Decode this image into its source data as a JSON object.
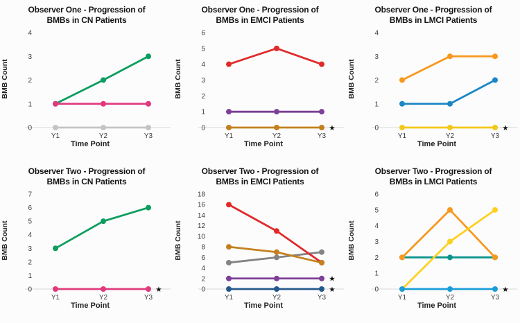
{
  "style": {
    "background": "#fcfcfc",
    "gridline_color": "#dedede",
    "tick_color": "#3d3d3d",
    "title_color": "#151515",
    "star_symbol": "★"
  },
  "chart_data": [
    {
      "type": "line",
      "title_line1": "Observer One - Progression of",
      "title_line2": "BMBs in CN Patients",
      "xlabel": "Time Point",
      "ylabel": "BMB Count",
      "categories": [
        "Y1",
        "Y2",
        "Y3"
      ],
      "ylim": [
        0,
        4
      ],
      "yticks": [
        0,
        1,
        2,
        3,
        4
      ],
      "grid": "zero-baseline-only",
      "legend": "none",
      "series": [
        {
          "name": "gray-flat",
          "color": "#c4c4c4",
          "values": [
            0,
            0,
            0
          ]
        },
        {
          "name": "green-rising",
          "color": "#0d9d60",
          "values": [
            1,
            2,
            3
          ]
        },
        {
          "name": "pink-flat",
          "color": "#e03a7c",
          "values": [
            1,
            1,
            1
          ]
        }
      ],
      "stars": []
    },
    {
      "type": "line",
      "title_line1": "Observer One - Progression of",
      "title_line2": "BMBs in EMCI Patients",
      "xlabel": "Time Point",
      "ylabel": "BMB Count",
      "categories": [
        "Y1",
        "Y2",
        "Y3"
      ],
      "ylim": [
        0,
        6
      ],
      "yticks": [
        0,
        1,
        2,
        3,
        4,
        5,
        6
      ],
      "grid": "zero-baseline-only",
      "legend": "none",
      "series": [
        {
          "name": "brown-flat",
          "color": "#c3801f",
          "values": [
            0,
            0,
            0
          ]
        },
        {
          "name": "purple-flat",
          "color": "#7d3f97",
          "values": [
            1,
            1,
            1
          ]
        },
        {
          "name": "red-peak",
          "color": "#e02a2a",
          "values": [
            4,
            5,
            4
          ]
        }
      ],
      "stars": [
        0
      ]
    },
    {
      "type": "line",
      "title_line1": "Observer One - Progression of",
      "title_line2": "BMBs in LMCI Patients",
      "xlabel": "Time Point",
      "ylabel": "BMB Count",
      "categories": [
        "Y1",
        "Y2",
        "Y3"
      ],
      "ylim": [
        0,
        4
      ],
      "yticks": [
        0,
        1,
        2,
        3,
        4
      ],
      "grid": "zero-baseline-only",
      "legend": "none",
      "series": [
        {
          "name": "yellow-flat",
          "color": "#f4c81a",
          "values": [
            0,
            0,
            0
          ]
        },
        {
          "name": "blue-rising",
          "color": "#1b86c6",
          "values": [
            1,
            1,
            2
          ]
        },
        {
          "name": "orange-rising",
          "color": "#f8981d",
          "values": [
            2,
            3,
            3
          ]
        }
      ],
      "stars": [
        0
      ]
    },
    {
      "type": "line",
      "title_line1": "Observer Two - Progression of",
      "title_line2": "BMBs in CN Patients",
      "xlabel": "Time Point",
      "ylabel": "BMB Count",
      "categories": [
        "Y1",
        "Y2",
        "Y3"
      ],
      "ylim": [
        0,
        7
      ],
      "yticks": [
        0,
        1,
        2,
        3,
        4,
        5,
        6,
        7
      ],
      "grid": "zero-baseline-only",
      "legend": "none",
      "series": [
        {
          "name": "pink-flat",
          "color": "#e03a7c",
          "values": [
            0,
            0,
            0
          ]
        },
        {
          "name": "green-rising",
          "color": "#0d9d60",
          "values": [
            3,
            5,
            6
          ]
        }
      ],
      "stars": [
        0
      ]
    },
    {
      "type": "line",
      "title_line1": "Observer Two -  Progression of",
      "title_line2": "BMBs in EMCI Patients",
      "xlabel": "Time Point",
      "ylabel": "BMB Count",
      "categories": [
        "Y1",
        "Y2",
        "Y3"
      ],
      "ylim": [
        0,
        18
      ],
      "yticks": [
        0,
        2,
        4,
        6,
        8,
        10,
        12,
        14,
        16,
        18
      ],
      "grid": "zero-baseline-only",
      "legend": "none",
      "series": [
        {
          "name": "gray-rising",
          "color": "#838383",
          "values": [
            5,
            6,
            7
          ]
        },
        {
          "name": "red-falling",
          "color": "#e02a2a",
          "values": [
            16,
            11,
            5
          ]
        },
        {
          "name": "brown-falling",
          "color": "#c3801f",
          "values": [
            8,
            7,
            5
          ]
        },
        {
          "name": "purple-flat",
          "color": "#7d3f97",
          "values": [
            2,
            2,
            2
          ]
        },
        {
          "name": "navy-flat",
          "color": "#24598c",
          "values": [
            0,
            0,
            0
          ]
        }
      ],
      "stars": [
        2,
        0
      ]
    },
    {
      "type": "line",
      "title_line1": "Observer Two - Progression of",
      "title_line2": "BMBs in LMCI Patients",
      "xlabel": "Time Point",
      "ylabel": "BMB Count",
      "categories": [
        "Y1",
        "Y2",
        "Y3"
      ],
      "ylim": [
        0,
        6
      ],
      "yticks": [
        0,
        1,
        2,
        3,
        4,
        5,
        6
      ],
      "grid": "zero-baseline-only",
      "legend": "none",
      "series": [
        {
          "name": "teal-flat",
          "color": "#0a948c",
          "values": [
            2,
            2,
            2
          ]
        },
        {
          "name": "orange-peak",
          "color": "#f8981d",
          "values": [
            2,
            5,
            2
          ]
        },
        {
          "name": "yellow-rising",
          "color": "#fed020",
          "values": [
            0,
            3,
            5
          ]
        },
        {
          "name": "lightblue-flat",
          "color": "#1b9dd9",
          "values": [
            0,
            0,
            0
          ]
        }
      ],
      "stars": [
        0
      ]
    }
  ]
}
